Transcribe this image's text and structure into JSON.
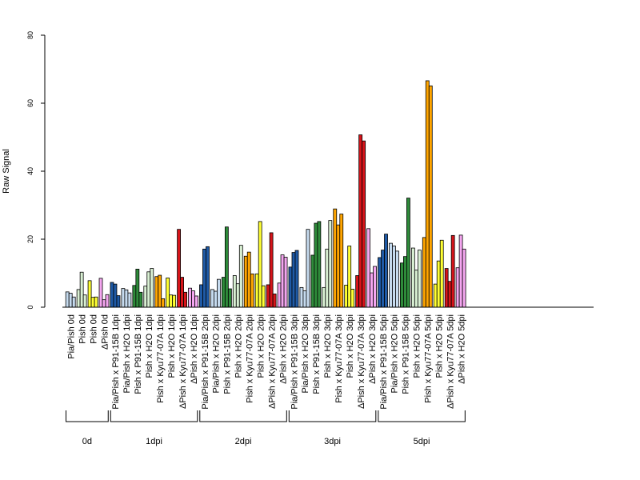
{
  "chart_data": {
    "type": "bar",
    "ylabel": "Raw Signal",
    "xlabel": "",
    "ylim": [
      0,
      80
    ],
    "yticks": [
      "0",
      "20",
      "40",
      "60",
      "80"
    ],
    "bars_per_category": 3,
    "categories": [
      {
        "label": "Pia/Pish 0d",
        "color": "#c6dbef",
        "values": [
          4.5,
          4.1,
          3.0
        ]
      },
      {
        "label": "Pish 0d",
        "color": "#d9f0d3",
        "values": [
          5.2,
          10.3,
          3.6
        ]
      },
      {
        "label": "Pish 0d",
        "color": "#ffff33",
        "values": [
          7.8,
          2.9,
          3.0
        ]
      },
      {
        "label": "ΔPish 0d",
        "color": "#f4a6f0",
        "values": [
          8.5,
          2.2,
          3.7
        ]
      },
      {
        "label": "Pia/Pish x P91-15B 1dpi",
        "color": "#1f5aa6",
        "values": [
          7.3,
          6.8,
          3.4
        ]
      },
      {
        "label": "Pia/Pish x H2O 1dpi",
        "color": "#c6dbef",
        "values": [
          5.5,
          5.1,
          4.2
        ]
      },
      {
        "label": "Pish x P91-15B 1dpi",
        "color": "#2e8b3a",
        "values": [
          6.4,
          11.2,
          4.4
        ]
      },
      {
        "label": "Pish x H2O 1dpi",
        "color": "#d9f0d3",
        "values": [
          6.2,
          10.4,
          11.4
        ]
      },
      {
        "label": "Pish x Kyu77-07A 1dpi",
        "color": "#ffa500",
        "values": [
          9.0,
          9.4,
          2.5
        ]
      },
      {
        "label": "Pish x H2O 1dpi",
        "color": "#ffff33",
        "values": [
          8.6,
          3.6,
          3.5
        ]
      },
      {
        "label": "ΔPish x Kyu77-07A 1dpi",
        "color": "#d7141a",
        "values": [
          22.9,
          8.8,
          4.4
        ]
      },
      {
        "label": "ΔPish x H2O 1dpi",
        "color": "#f4a6f0",
        "values": [
          5.6,
          4.8,
          3.3
        ]
      },
      {
        "label": "Pia/Pish x P91-15B 2dpi",
        "color": "#1f5aa6",
        "values": [
          6.6,
          17.1,
          17.8
        ]
      },
      {
        "label": "Pia/Pish x H2O 2dpi",
        "color": "#c6dbef",
        "values": [
          5.2,
          4.7,
          8.2
        ]
      },
      {
        "label": "Pish x P91-15B 2dpi",
        "color": "#2e8b3a",
        "values": [
          8.8,
          23.6,
          5.4
        ]
      },
      {
        "label": "Pish x H2O 2dpi",
        "color": "#d9f0d3",
        "values": [
          9.3,
          6.9,
          18.2
        ]
      },
      {
        "label": "Pish x Kyu77-07A 2dpi",
        "color": "#ffa500",
        "values": [
          15.0,
          16.2,
          9.8
        ]
      },
      {
        "label": "Pish x H2O 2dpi",
        "color": "#ffff33",
        "values": [
          9.8,
          25.2,
          6.3
        ]
      },
      {
        "label": "ΔPish x Kyu77-07A 2dpi",
        "color": "#d7141a",
        "values": [
          6.6,
          21.9,
          3.9
        ]
      },
      {
        "label": "ΔPish x H2O 2dpi",
        "color": "#f4a6f0",
        "values": [
          7.1,
          15.4,
          14.7
        ]
      },
      {
        "label": "Pia/Pish x P91-15B 3dpi",
        "color": "#1f5aa6",
        "values": [
          11.8,
          16.1,
          16.7
        ]
      },
      {
        "label": "Pia/Pish x H2O 3dpi",
        "color": "#c6dbef",
        "values": [
          5.8,
          4.8,
          22.9
        ]
      },
      {
        "label": "Pish x P91-15B 3dpi",
        "color": "#2e8b3a",
        "values": [
          15.3,
          24.7,
          25.2
        ]
      },
      {
        "label": "Pish x H2O 3dpi",
        "color": "#d9f0d3",
        "values": [
          5.8,
          17.1,
          25.5
        ]
      },
      {
        "label": "Pish x Kyu77-07A 3dpi",
        "color": "#ffa500",
        "values": [
          28.9,
          24.2,
          27.4
        ]
      },
      {
        "label": "Pish x H2O 3dpi",
        "color": "#ffff33",
        "values": [
          6.5,
          18.0,
          5.3
        ]
      },
      {
        "label": "ΔPish x Kyu77-07A 3dpi",
        "color": "#d7141a",
        "values": [
          9.3,
          50.7,
          48.9
        ]
      },
      {
        "label": "ΔPish x H2O 3dpi",
        "color": "#f4a6f0",
        "values": [
          23.1,
          10.1,
          12.0
        ]
      },
      {
        "label": "Pia/Pish x P91-15B 5dpi",
        "color": "#1f5aa6",
        "values": [
          14.6,
          16.8,
          21.5
        ]
      },
      {
        "label": "Pia/Pish x H2O 5dpi",
        "color": "#c6dbef",
        "values": [
          18.8,
          18.0,
          16.5
        ]
      },
      {
        "label": "Pish x P91-15B 5dpi",
        "color": "#2e8b3a",
        "values": [
          13.0,
          14.9,
          32.1
        ]
      },
      {
        "label": "Pish x H2O 5dpi",
        "color": "#d9f0d3",
        "values": [
          17.4,
          10.9,
          16.8
        ]
      },
      {
        "label": "Pish x Kyu77-07A 5dpi",
        "color": "#ffa500",
        "values": [
          20.5,
          66.6,
          65.1
        ]
      },
      {
        "label": "Pish x H2O 5dpi",
        "color": "#ffff33",
        "values": [
          6.8,
          13.6,
          19.7
        ]
      },
      {
        "label": "ΔPish x Kyu77-07A 5dpi",
        "color": "#d7141a",
        "values": [
          11.4,
          7.6,
          21.1
        ]
      },
      {
        "label": "ΔPish x H2O 5dpi",
        "color": "#f4a6f0",
        "values": [
          11.6,
          21.2,
          17.1
        ]
      }
    ],
    "groups": [
      {
        "label": "0d",
        "from": 0,
        "to": 3
      },
      {
        "label": "1dpi",
        "from": 4,
        "to": 11
      },
      {
        "label": "2dpi",
        "from": 12,
        "to": 19
      },
      {
        "label": "3dpi",
        "from": 20,
        "to": 27
      },
      {
        "label": "5dpi",
        "from": 28,
        "to": 35
      }
    ],
    "grid": false,
    "legend": "none"
  }
}
